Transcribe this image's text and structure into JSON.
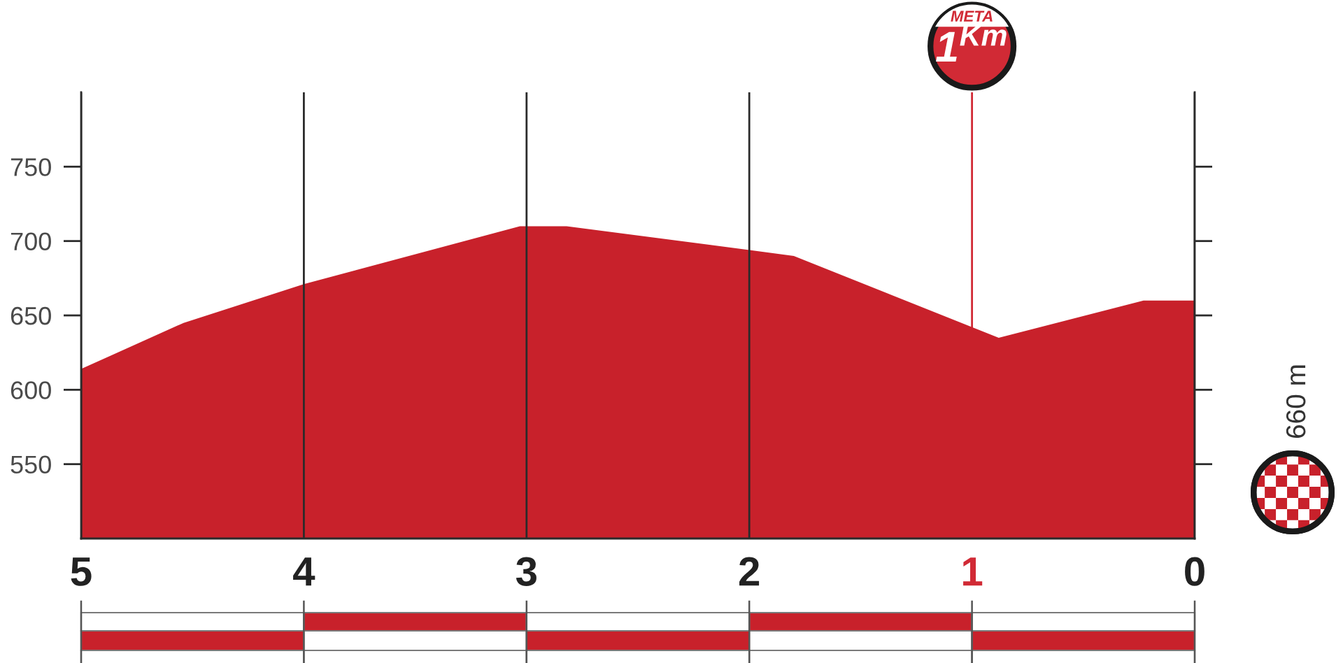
{
  "chart_data": {
    "type": "area",
    "x": [
      5,
      4.54,
      4,
      3.03,
      2.82,
      2,
      1.8,
      0.88,
      0.23,
      0
    ],
    "values": [
      614,
      645,
      671,
      710,
      710,
      694,
      690,
      635,
      660,
      660
    ],
    "color": "#c8212b",
    "xlim": [
      5,
      0
    ],
    "xticks": [
      5,
      4,
      3,
      2,
      1,
      0
    ],
    "ylim": [
      500,
      800
    ],
    "yticks": [
      550,
      600,
      650,
      700,
      750
    ],
    "grid": "x",
    "ref_lines": [
      {
        "axis": "x",
        "value": 1,
        "label": "1$^{Km}$",
        "color": "#d12a35"
      }
    ],
    "annotations": [
      "META",
      "660 m"
    ]
  }
}
